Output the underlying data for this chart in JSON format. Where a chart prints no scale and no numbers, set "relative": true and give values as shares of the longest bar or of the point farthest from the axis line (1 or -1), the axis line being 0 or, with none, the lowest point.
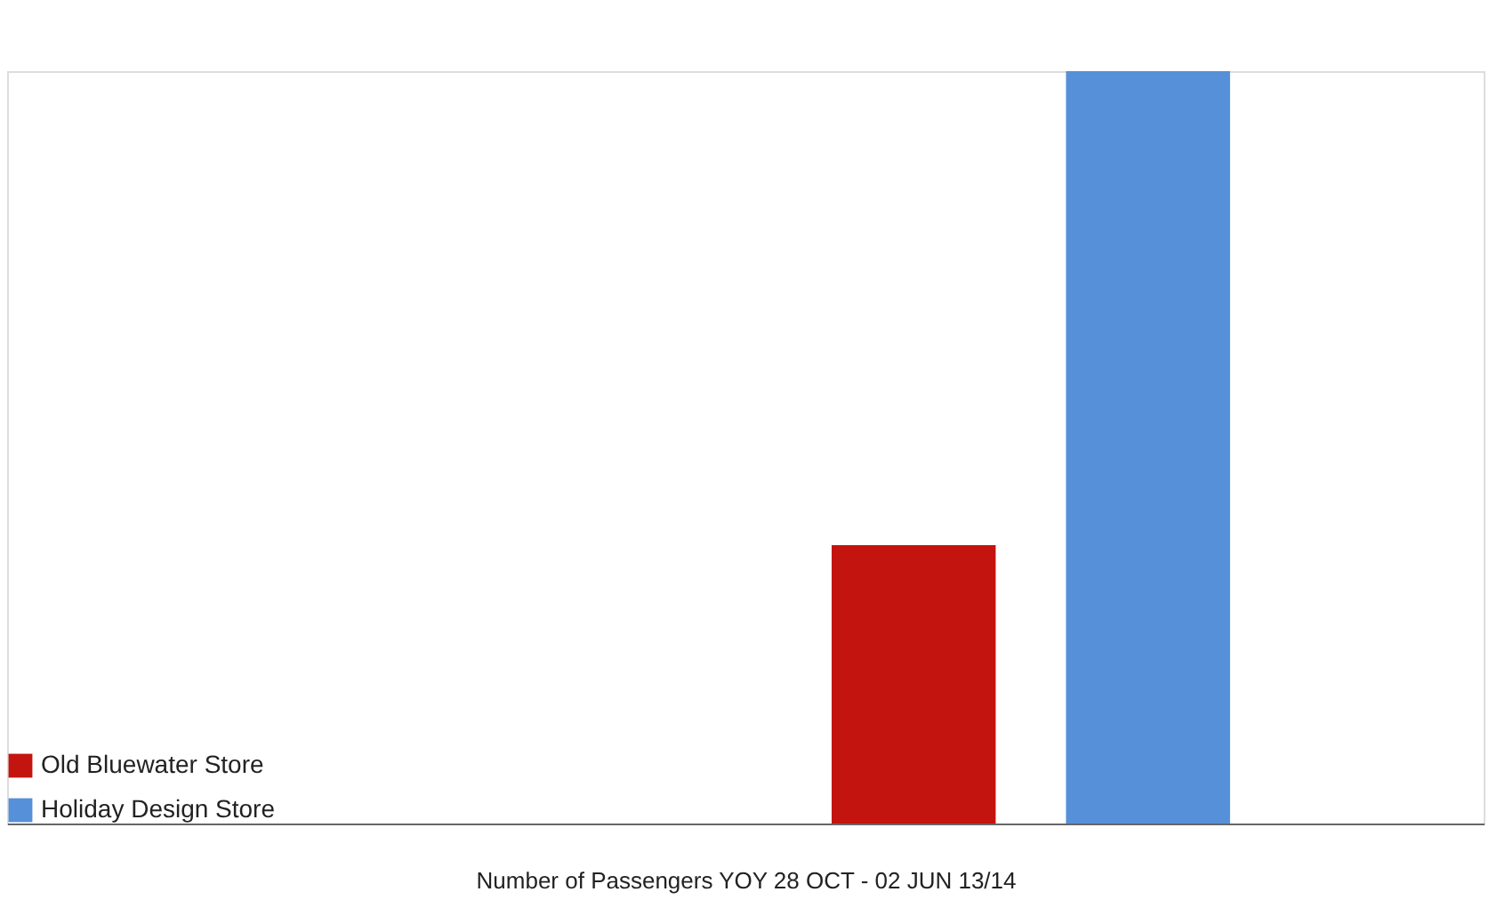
{
  "chart_data": {
    "type": "bar",
    "relative": true,
    "xlabel": "Number of Passengers YOY 28 OCT - 02 JUN 13/14",
    "categories": [
      null
    ],
    "series": [
      {
        "name": "Old Bluewater Store",
        "color": "#c4140f",
        "values": [
          0.37
        ]
      },
      {
        "name": "Holiday Design Store",
        "color": "#5590d9",
        "values": [
          1
        ]
      }
    ],
    "legend": "bottom left",
    "grid": false
  }
}
